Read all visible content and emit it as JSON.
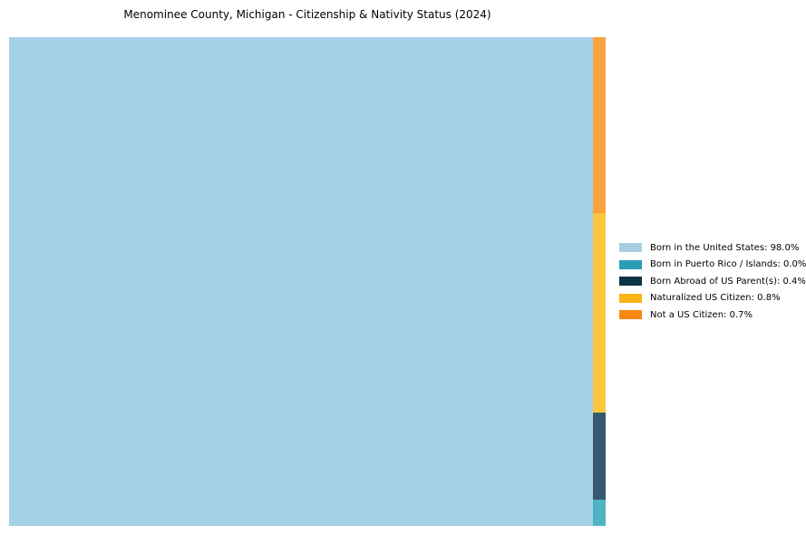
{
  "title": "Menominee County, Michigan - Citizenship & Nativity Status (2024)",
  "chart_data": {
    "type": "treemap",
    "title": "Menominee County, Michigan - Citizenship & Nativity Status (2024)",
    "categories": [
      "Born in the United States",
      "Born in Puerto Rico / Islands",
      "Born Abroad of US Parent(s)",
      "Naturalized US Citizen",
      "Not a US Citizen"
    ],
    "slugs": [
      "born-in-the-united-states",
      "born-in-puerto-rico-islands",
      "born-abroad-of-us-parents",
      "naturalized-us-citizen",
      "not-a-us-citizen"
    ],
    "values_pct": [
      98.0,
      0.0,
      0.4,
      0.8,
      0.7
    ],
    "legend_colors": [
      "#a6cee3",
      "#2a9cb3",
      "#0d3347",
      "#fcb316",
      "#f8870e"
    ],
    "fill_colors": [
      "#a5d2e8",
      "#4fb3c6",
      "#37596f",
      "#fdc63f",
      "#f9a23e"
    ],
    "layout": {
      "grid": false,
      "legend_position": "right-of-plot-vertically-centered",
      "main_segment": {
        "category_index": 0,
        "width_frac": 0.97872
      },
      "strip_width_frac": 0.02128,
      "strip_segments_top_to_bottom": [
        {
          "category_index": 4,
          "height_frac": 0.3599
        },
        {
          "category_index": 3,
          "height_frac": 0.4082
        },
        {
          "category_index": 2,
          "height_frac": 0.1781
        },
        {
          "category_index": 1,
          "height_frac": 0.0538
        }
      ]
    }
  },
  "legend": {
    "items": [
      {
        "label": "Born in the United States: 98.0%",
        "color": "#a6cee3",
        "slug": "born-in-the-united-states"
      },
      {
        "label": "Born in Puerto Rico / Islands: 0.0%",
        "color": "#2a9cb3",
        "slug": "born-in-puerto-rico-islands"
      },
      {
        "label": "Born Abroad of US Parent(s): 0.4%",
        "color": "#0d3347",
        "slug": "born-abroad-of-us-parents"
      },
      {
        "label": "Naturalized US Citizen: 0.8%",
        "color": "#fcb316",
        "slug": "naturalized-us-citizen"
      },
      {
        "label": "Not a US Citizen: 0.7%",
        "color": "#f8870e",
        "slug": "not-a-us-citizen"
      }
    ]
  }
}
